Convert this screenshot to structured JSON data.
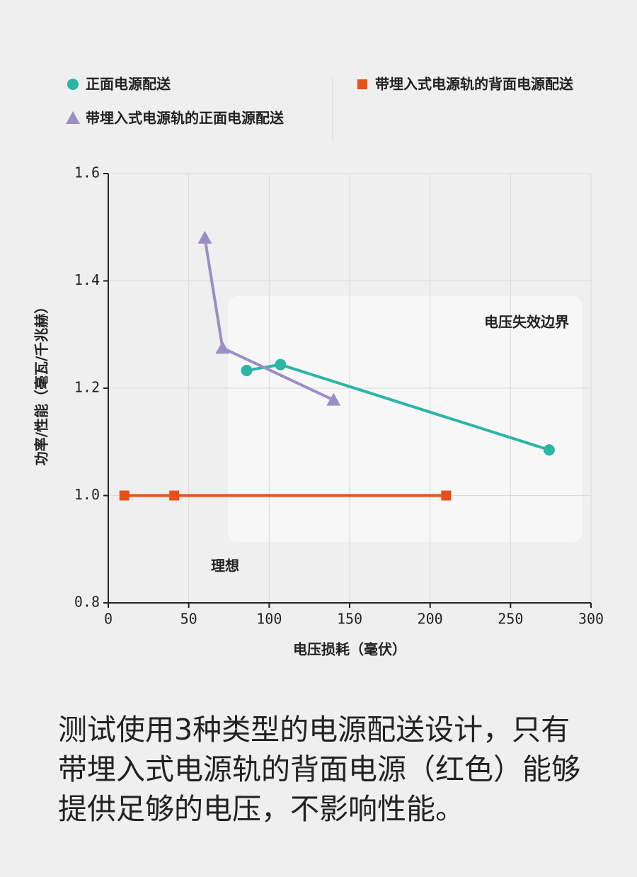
{
  "chart_data": {
    "type": "line",
    "xlabel": "电压损耗（毫伏）",
    "ylabel": "功率/性能（毫瓦/千兆赫）",
    "xlim": [
      0,
      300
    ],
    "xticks": [
      0,
      50,
      100,
      150,
      200,
      250,
      300
    ],
    "ylim": [
      0.8,
      1.6
    ],
    "yticks": [
      0.8,
      {
        "value": 1.0,
        "label": "1.0"
      },
      1.2,
      1.4,
      1.6
    ],
    "grid": true,
    "legend": "top",
    "series": [
      {
        "name": "正面电源配送",
        "color": "#2bb5a5",
        "marker": "circle",
        "x": [
          86,
          107,
          274
        ],
        "values": [
          1.233,
          1.244,
          1.085
        ]
      },
      {
        "name": "带埋入式电源轨的背面电源配送",
        "color": "#e8501a",
        "marker": "square",
        "x": [
          10,
          41,
          210
        ],
        "values": [
          1.0,
          1.0,
          1.0
        ]
      },
      {
        "name": "带埋入式电源轨的正面电源配送",
        "color": "#9b8ec4",
        "marker": "triangle",
        "x": [
          60,
          71,
          140
        ],
        "values": [
          1.48,
          1.275,
          1.178
        ]
      }
    ],
    "annotations": [
      "电压失效边界",
      "理想"
    ],
    "caption": "测试使用3种类型的电源配送设计，只有带埋入式电源轨的背面电源（红色）能够提供足够的电压，不影响性能。"
  }
}
